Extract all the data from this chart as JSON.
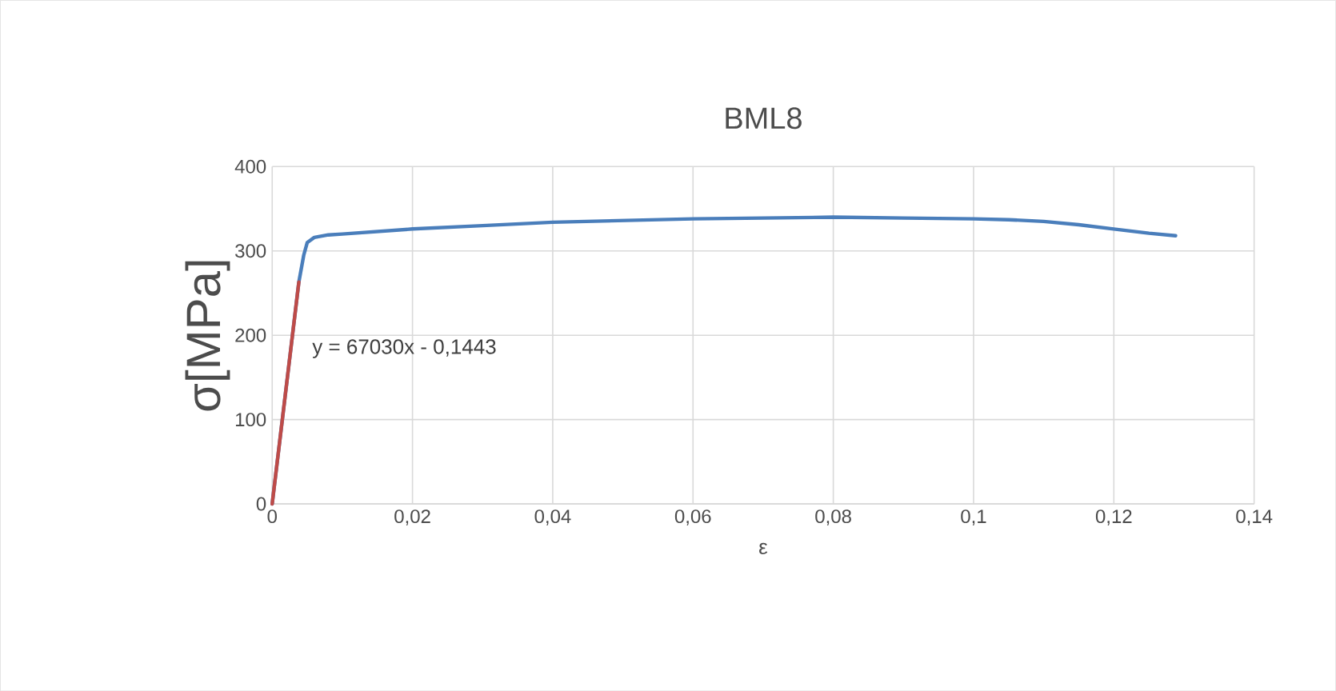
{
  "chart_data": {
    "type": "line",
    "title": "BML8",
    "xlabel": "ε",
    "ylabel": "σ[MPa]",
    "xlim": [
      0,
      0.14
    ],
    "ylim": [
      0,
      400
    ],
    "xticks": [
      0,
      {
        "value": 0.02,
        "label": "0,02"
      },
      {
        "value": 0.04,
        "label": "0,04"
      },
      {
        "value": 0.06,
        "label": "0,06"
      },
      {
        "value": 0.08,
        "label": "0,08"
      },
      {
        "value": 0.1,
        "label": "0,1"
      },
      {
        "value": 0.12,
        "label": "0,12"
      },
      {
        "value": 0.14,
        "label": "0,14"
      }
    ],
    "yticks": [
      0,
      100,
      200,
      300,
      400
    ],
    "grid": true,
    "annotations": [
      "y = 67030x - 0,1443"
    ],
    "series": [
      {
        "color": "#4a7ebb",
        "x": [
          0,
          0.0038,
          0.0045,
          0.005,
          0.006,
          0.008,
          0.01,
          0.02,
          0.03,
          0.04,
          0.05,
          0.06,
          0.07,
          0.08,
          0.09,
          0.1,
          0.105,
          0.11,
          0.115,
          0.12,
          0.125,
          0.1288
        ],
        "values": [
          0,
          263,
          295,
          310,
          316,
          319,
          320,
          326,
          330,
          334,
          336,
          338,
          339,
          340,
          339,
          338,
          337,
          335,
          331,
          326,
          321,
          318
        ]
      },
      {
        "color": "#be4b48",
        "x": [
          0,
          0.0038
        ],
        "values": [
          0,
          263
        ]
      }
    ]
  }
}
